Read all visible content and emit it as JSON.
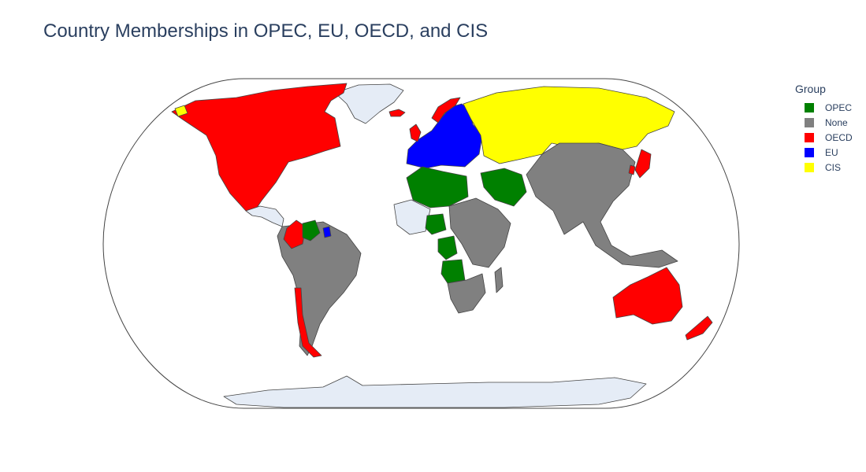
{
  "title": "Country Memberships in OPEC, EU, OECD, and CIS",
  "legend": {
    "title": "Group",
    "items": [
      {
        "label": "OPEC",
        "color": "#008000"
      },
      {
        "label": "None",
        "color": "#808080"
      },
      {
        "label": "OECD",
        "color": "#ff0000"
      },
      {
        "label": "EU",
        "color": "#0000ff"
      },
      {
        "label": "CIS",
        "color": "#ffff00"
      }
    ]
  },
  "map": {
    "projection": "natural-earth",
    "land_color": "#e5ecf6",
    "border_color": "#444444",
    "regions": [
      {
        "name": "North America OECD",
        "group": "OECD"
      },
      {
        "name": "Greenland",
        "group": "unassigned"
      },
      {
        "name": "Iceland",
        "group": "OECD"
      },
      {
        "name": "Central America and Caribbean",
        "group": "unassigned"
      },
      {
        "name": "Colombia",
        "group": "OECD"
      },
      {
        "name": "Venezuela",
        "group": "OPEC"
      },
      {
        "name": "French Guiana",
        "group": "EU"
      },
      {
        "name": "South America",
        "group": "None"
      },
      {
        "name": "Chile",
        "group": "OECD"
      },
      {
        "name": "Western Europe",
        "group": "EU"
      },
      {
        "name": "Norway",
        "group": "OECD"
      },
      {
        "name": "United Kingdom",
        "group": "OECD"
      },
      {
        "name": "Russia and CIS",
        "group": "CIS"
      },
      {
        "name": "North Africa OPEC",
        "group": "OPEC"
      },
      {
        "name": "Gulf OPEC",
        "group": "OPEC"
      },
      {
        "name": "Nigeria",
        "group": "OPEC"
      },
      {
        "name": "Congo and Gabon",
        "group": "OPEC"
      },
      {
        "name": "Angola",
        "group": "OPEC"
      },
      {
        "name": "West Africa",
        "group": "unassigned"
      },
      {
        "name": "East Africa",
        "group": "None"
      },
      {
        "name": "Southern Africa",
        "group": "None"
      },
      {
        "name": "Madagascar",
        "group": "None"
      },
      {
        "name": "Asia",
        "group": "None"
      },
      {
        "name": "Japan",
        "group": "OECD"
      },
      {
        "name": "Korea",
        "group": "OECD"
      },
      {
        "name": "Australia",
        "group": "OECD"
      },
      {
        "name": "New Zealand",
        "group": "OECD"
      },
      {
        "name": "Antarctica",
        "group": "unassigned"
      }
    ]
  }
}
